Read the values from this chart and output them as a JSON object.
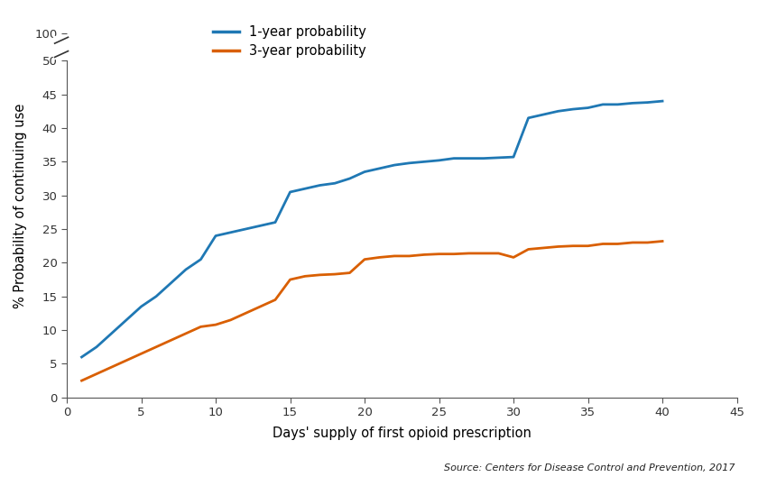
{
  "xlabel": "Days' supply of first opioid prescription",
  "ylabel": "% Probability of continuing use",
  "source_text": "Source: Centers for Disease Control and Prevention, 2017",
  "legend_labels": [
    "1-year probability",
    "3-year probability"
  ],
  "line1_color": "#1f78b4",
  "line2_color": "#d95f02",
  "xlim": [
    0,
    45
  ],
  "xticks": [
    0,
    5,
    10,
    15,
    20,
    25,
    30,
    35,
    40,
    45
  ],
  "ytick_labels": [
    "0",
    "5",
    "10",
    "15",
    "20",
    "25",
    "30",
    "35",
    "40",
    "45",
    "50",
    "100"
  ],
  "ytick_positions": [
    0,
    5,
    10,
    15,
    20,
    25,
    30,
    35,
    40,
    45,
    50,
    54
  ],
  "ylim": [
    0,
    57
  ],
  "line1_x": [
    1,
    2,
    3,
    4,
    5,
    6,
    7,
    8,
    9,
    10,
    11,
    12,
    13,
    14,
    15,
    16,
    17,
    18,
    19,
    20,
    21,
    22,
    23,
    24,
    25,
    26,
    27,
    28,
    29,
    30,
    31,
    32,
    33,
    34,
    35,
    36,
    37,
    38,
    39,
    40
  ],
  "line1_y": [
    6.0,
    7.5,
    9.5,
    11.5,
    13.5,
    15.0,
    17.0,
    19.0,
    20.5,
    24.0,
    24.5,
    25.0,
    25.5,
    26.0,
    30.5,
    31.0,
    31.5,
    31.8,
    32.5,
    33.5,
    34.0,
    34.5,
    34.8,
    35.0,
    35.2,
    35.5,
    35.5,
    35.5,
    35.6,
    35.7,
    41.5,
    42.0,
    42.5,
    42.8,
    43.0,
    43.5,
    43.5,
    43.7,
    43.8,
    44.0
  ],
  "line2_x": [
    1,
    2,
    3,
    4,
    5,
    6,
    7,
    8,
    9,
    10,
    11,
    12,
    13,
    14,
    15,
    16,
    17,
    18,
    19,
    20,
    21,
    22,
    23,
    24,
    25,
    26,
    27,
    28,
    29,
    30,
    31,
    32,
    33,
    34,
    35,
    36,
    37,
    38,
    39,
    40
  ],
  "line2_y": [
    2.5,
    3.5,
    4.5,
    5.5,
    6.5,
    7.5,
    8.5,
    9.5,
    10.5,
    10.8,
    11.5,
    12.5,
    13.5,
    14.5,
    17.5,
    18.0,
    18.2,
    18.3,
    18.5,
    20.5,
    20.8,
    21.0,
    21.0,
    21.2,
    21.3,
    21.3,
    21.4,
    21.4,
    21.4,
    20.8,
    22.0,
    22.2,
    22.4,
    22.5,
    22.5,
    22.8,
    22.8,
    23.0,
    23.0,
    23.2
  ],
  "line_width": 2.0
}
